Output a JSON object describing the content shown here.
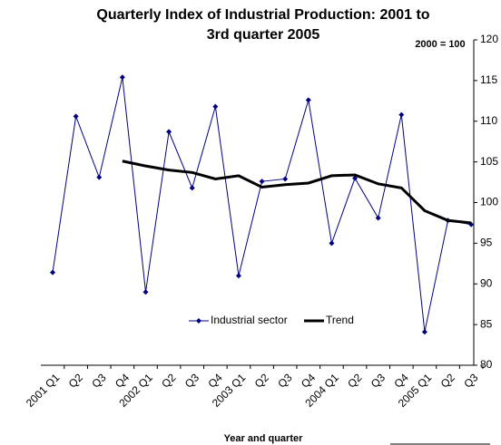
{
  "chart_data": {
    "type": "line",
    "title": "Quarterly Index of Industrial Production: 2001 to 3rd quarter 2005",
    "y_axis_note": "2000 = 100",
    "x_axis_label": "Year and quarter",
    "categories": [
      "2001 Q1",
      "Q2",
      "Q3",
      "Q4",
      "2002 Q1",
      "Q2",
      "Q3",
      "Q4",
      "2003 Q1",
      "Q2",
      "Q3",
      "Q4",
      "2004 Q1",
      "Q2",
      "Q3",
      "Q4",
      "2005 Q1",
      "Q2",
      "Q3"
    ],
    "series": [
      {
        "name": "Industrial sector",
        "color": "#000080",
        "values": [
          91.4,
          110.6,
          103.1,
          115.4,
          89.0,
          108.7,
          101.8,
          111.8,
          91.0,
          102.6,
          102.9,
          112.6,
          95.0,
          103.0,
          98.1,
          110.8,
          84.1,
          97.8,
          97.3
        ]
      },
      {
        "name": "Trend",
        "color": "#000000",
        "values": [
          null,
          null,
          null,
          105.1,
          104.5,
          104.0,
          103.7,
          102.9,
          103.3,
          101.9,
          102.2,
          102.4,
          103.3,
          103.4,
          102.3,
          101.8,
          99.0,
          97.8,
          97.5
        ]
      }
    ],
    "ylim": [
      80,
      120
    ],
    "yticks": [
      80,
      85,
      90,
      95,
      100,
      105,
      110,
      115,
      120
    ],
    "y_axis_side": "right"
  }
}
